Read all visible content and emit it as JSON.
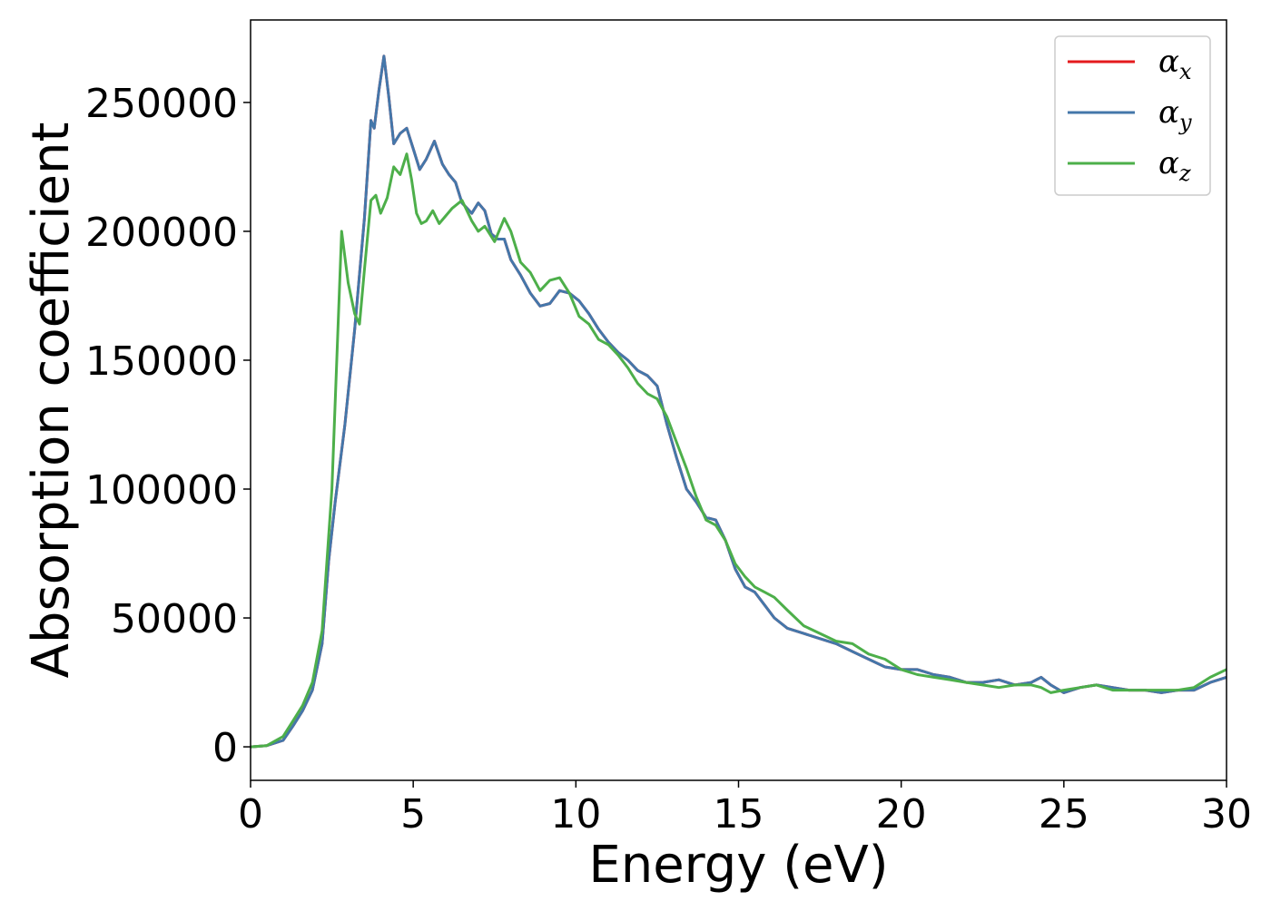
{
  "chart_data": {
    "type": "line",
    "title": "",
    "xlabel": "Energy (eV)",
    "ylabel": "Absorption coefficient",
    "xlim": [
      0,
      30
    ],
    "ylim": [
      -13000,
      282000
    ],
    "xticks": [
      0,
      5,
      10,
      15,
      20,
      25,
      30
    ],
    "yticks": [
      0,
      50000,
      100000,
      150000,
      200000,
      250000
    ],
    "grid": false,
    "legend_position": "top-right",
    "series": [
      {
        "name": "α_x",
        "legend_base": "α",
        "legend_sub": "x",
        "color": "#e41a1c",
        "x": [
          0,
          0.5,
          1.0,
          1.3,
          1.6,
          1.9,
          2.2,
          2.4,
          2.6,
          2.9,
          3.2,
          3.5,
          3.7,
          3.8,
          3.95,
          4.1,
          4.25,
          4.4,
          4.6,
          4.8,
          5.0,
          5.2,
          5.4,
          5.65,
          5.9,
          6.1,
          6.3,
          6.5,
          6.8,
          7.0,
          7.2,
          7.4,
          7.6,
          7.8,
          8.0,
          8.3,
          8.6,
          8.9,
          9.2,
          9.5,
          9.8,
          10.1,
          10.4,
          10.7,
          11.0,
          11.3,
          11.6,
          11.9,
          12.2,
          12.5,
          12.8,
          13.1,
          13.4,
          13.7,
          14.0,
          14.3,
          14.6,
          14.9,
          15.2,
          15.5,
          15.8,
          16.1,
          16.5,
          17.0,
          17.5,
          18.0,
          18.5,
          19.0,
          19.5,
          20.0,
          20.5,
          21.0,
          21.5,
          22.0,
          22.5,
          23.0,
          23.5,
          24.0,
          24.3,
          24.6,
          25.0,
          25.5,
          26.0,
          26.5,
          27.0,
          27.5,
          28.0,
          28.5,
          29.0,
          29.5,
          30.0
        ],
        "y": [
          0,
          500,
          2500,
          8000,
          14000,
          22000,
          40000,
          72000,
          95000,
          125000,
          162000,
          205000,
          243000,
          240000,
          255000,
          268000,
          252000,
          234000,
          238000,
          240000,
          232000,
          224000,
          228000,
          235000,
          226000,
          222000,
          219000,
          211000,
          207000,
          211000,
          208000,
          199000,
          197000,
          197000,
          189000,
          183000,
          176000,
          171000,
          172000,
          177000,
          176000,
          173000,
          168000,
          162000,
          157000,
          153000,
          150000,
          146000,
          144000,
          140000,
          125000,
          112000,
          100000,
          95000,
          89000,
          88000,
          80000,
          69000,
          62000,
          60000,
          55000,
          50000,
          46000,
          44000,
          42000,
          40000,
          37000,
          34000,
          31000,
          30000,
          30000,
          28000,
          27000,
          25000,
          25000,
          26000,
          24000,
          25000,
          27000,
          24000,
          21000,
          23000,
          24000,
          23000,
          22000,
          22000,
          21000,
          22000,
          22000,
          25000,
          27000
        ]
      },
      {
        "name": "α_y",
        "legend_base": "α",
        "legend_sub": "y",
        "color": "#4477aa",
        "x": [
          0,
          0.5,
          1.0,
          1.3,
          1.6,
          1.9,
          2.2,
          2.4,
          2.6,
          2.9,
          3.2,
          3.5,
          3.7,
          3.8,
          3.95,
          4.1,
          4.25,
          4.4,
          4.6,
          4.8,
          5.0,
          5.2,
          5.4,
          5.65,
          5.9,
          6.1,
          6.3,
          6.5,
          6.8,
          7.0,
          7.2,
          7.4,
          7.6,
          7.8,
          8.0,
          8.3,
          8.6,
          8.9,
          9.2,
          9.5,
          9.8,
          10.1,
          10.4,
          10.7,
          11.0,
          11.3,
          11.6,
          11.9,
          12.2,
          12.5,
          12.8,
          13.1,
          13.4,
          13.7,
          14.0,
          14.3,
          14.6,
          14.9,
          15.2,
          15.5,
          15.8,
          16.1,
          16.5,
          17.0,
          17.5,
          18.0,
          18.5,
          19.0,
          19.5,
          20.0,
          20.5,
          21.0,
          21.5,
          22.0,
          22.5,
          23.0,
          23.5,
          24.0,
          24.3,
          24.6,
          25.0,
          25.5,
          26.0,
          26.5,
          27.0,
          27.5,
          28.0,
          28.5,
          29.0,
          29.5,
          30.0
        ],
        "y": [
          0,
          500,
          2500,
          8000,
          14000,
          22000,
          40000,
          72000,
          95000,
          125000,
          162000,
          205000,
          243000,
          240000,
          255000,
          268000,
          252000,
          234000,
          238000,
          240000,
          232000,
          224000,
          228000,
          235000,
          226000,
          222000,
          219000,
          211000,
          207000,
          211000,
          208000,
          199000,
          197000,
          197000,
          189000,
          183000,
          176000,
          171000,
          172000,
          177000,
          176000,
          173000,
          168000,
          162000,
          157000,
          153000,
          150000,
          146000,
          144000,
          140000,
          125000,
          112000,
          100000,
          95000,
          89000,
          88000,
          80000,
          69000,
          62000,
          60000,
          55000,
          50000,
          46000,
          44000,
          42000,
          40000,
          37000,
          34000,
          31000,
          30000,
          30000,
          28000,
          27000,
          25000,
          25000,
          26000,
          24000,
          25000,
          27000,
          24000,
          21000,
          23000,
          24000,
          23000,
          22000,
          22000,
          21000,
          22000,
          22000,
          25000,
          27000
        ]
      },
      {
        "name": "α_z",
        "legend_base": "α",
        "legend_sub": "z",
        "color": "#4daf4a",
        "x": [
          0,
          0.5,
          1.0,
          1.3,
          1.6,
          1.9,
          2.2,
          2.5,
          2.8,
          3.0,
          3.2,
          3.35,
          3.5,
          3.7,
          3.85,
          4.0,
          4.2,
          4.4,
          4.6,
          4.8,
          4.95,
          5.1,
          5.25,
          5.4,
          5.6,
          5.8,
          6.0,
          6.2,
          6.5,
          6.8,
          7.0,
          7.2,
          7.5,
          7.8,
          8.0,
          8.3,
          8.6,
          8.9,
          9.2,
          9.5,
          9.8,
          10.1,
          10.4,
          10.7,
          11.0,
          11.3,
          11.6,
          11.9,
          12.2,
          12.5,
          12.8,
          13.1,
          13.4,
          13.7,
          14.0,
          14.3,
          14.6,
          14.9,
          15.2,
          15.5,
          15.8,
          16.1,
          16.5,
          17.0,
          17.5,
          18.0,
          18.5,
          19.0,
          19.5,
          20.0,
          20.5,
          21.0,
          21.5,
          22.0,
          22.5,
          23.0,
          23.5,
          24.0,
          24.3,
          24.6,
          25.0,
          25.5,
          26.0,
          26.5,
          27.0,
          27.5,
          28.0,
          28.5,
          29.0,
          29.5,
          30.0
        ],
        "y": [
          0,
          500,
          4000,
          10000,
          16000,
          25000,
          45000,
          100000,
          200000,
          180000,
          168000,
          164000,
          185000,
          212000,
          214000,
          207000,
          213000,
          225000,
          222000,
          230000,
          220000,
          207000,
          203000,
          204000,
          208000,
          203000,
          206000,
          209000,
          212000,
          204000,
          200000,
          202000,
          196000,
          205000,
          200000,
          188000,
          184000,
          177000,
          181000,
          182000,
          176000,
          167000,
          164000,
          158000,
          156000,
          152000,
          147000,
          141000,
          137000,
          135000,
          128000,
          118000,
          108000,
          97000,
          88000,
          86000,
          80000,
          71000,
          66000,
          62000,
          60000,
          58000,
          53000,
          47000,
          44000,
          41000,
          40000,
          36000,
          34000,
          30000,
          28000,
          27000,
          26000,
          25000,
          24000,
          23000,
          24000,
          24000,
          23000,
          21000,
          22000,
          23000,
          24000,
          22000,
          22000,
          22000,
          22000,
          22000,
          23000,
          27000,
          30000
        ]
      }
    ]
  }
}
